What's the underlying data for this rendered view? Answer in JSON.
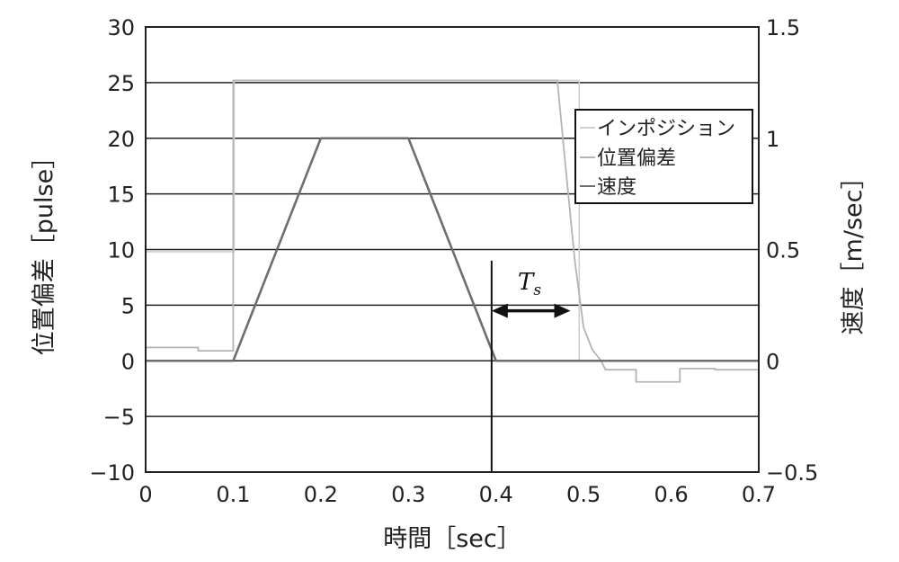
{
  "chart_data": {
    "type": "line",
    "xlabel": "時間［sec］",
    "ylabel_left": "位置偏差［pulse］",
    "ylabel_right": "速度［m/sec］",
    "xlim": [
      0,
      0.7
    ],
    "ylim_left": [
      -10,
      30
    ],
    "ylim_right": [
      -0.5,
      1.5
    ],
    "x_ticks": [
      "0",
      "0.1",
      "0.2",
      "0.3",
      "0.4",
      "0.5",
      "0.6",
      "0.7"
    ],
    "y_ticks_left": [
      "−10",
      "−5",
      "0",
      "5",
      "10",
      "15",
      "20",
      "25",
      "30"
    ],
    "y_ticks_right": [
      "−0.5",
      "0",
      "0.5",
      "1",
      "1.5"
    ],
    "grid": "horizontal",
    "legend_position": "top-right",
    "series": [
      {
        "name": "インポジション",
        "axis": "left",
        "color": "#cfcfcf",
        "x": [
          0,
          0.101,
          0.101,
          0.495,
          0.495,
          0.7
        ],
        "y": [
          9.8,
          9.8,
          25.2,
          25.2,
          0,
          0
        ]
      },
      {
        "name": "位置偏差",
        "axis": "left",
        "color": "#b4b4b4",
        "x": [
          0,
          0.06,
          0.06,
          0.1,
          0.1,
          0.47,
          0.48,
          0.49,
          0.5,
          0.51,
          0.52,
          0.525,
          0.56,
          0.56,
          0.61,
          0.61,
          0.65,
          0.65,
          0.7
        ],
        "y": [
          1.2,
          1.2,
          0.9,
          0.9,
          25.2,
          25.2,
          17,
          9,
          3,
          1,
          0,
          -0.8,
          -0.8,
          -1.9,
          -1.9,
          -0.7,
          -0.7,
          -0.8,
          -0.8
        ]
      },
      {
        "name": "速度",
        "axis": "right",
        "color": "#6e6e6e",
        "x": [
          0,
          0.1,
          0.2,
          0.3,
          0.4,
          0.7
        ],
        "y": [
          0,
          0,
          1.0,
          1.0,
          0,
          0
        ]
      }
    ],
    "annotations": [
      {
        "type": "vertical_line",
        "x": 0.395
      },
      {
        "type": "double_arrow",
        "x_start": 0.395,
        "x_end": 0.485,
        "y": 4.5,
        "label": "T",
        "subscript": "s"
      }
    ]
  }
}
